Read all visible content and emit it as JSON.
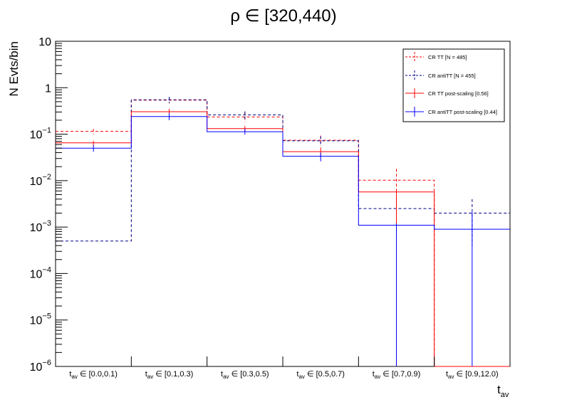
{
  "chart_data": {
    "type": "line",
    "title_symbol": "ρ ∈",
    "title_range": "[320,440)",
    "ylabel": "N Evts/bin",
    "xlabel_main": "t",
    "xlabel_sub": "av",
    "yscale": "log",
    "ylim": [
      1e-06,
      10
    ],
    "y_ticks": [
      {
        "base": "10",
        "exp": "",
        "value": 10
      },
      {
        "base": "1",
        "exp": "",
        "value": 1
      },
      {
        "base": "10",
        "exp": "−1",
        "value": 0.1
      },
      {
        "base": "10",
        "exp": "−2",
        "value": 0.01
      },
      {
        "base": "10",
        "exp": "−3",
        "value": 0.001
      },
      {
        "base": "10",
        "exp": "−4",
        "value": 0.0001
      },
      {
        "base": "10",
        "exp": "−5",
        "value": 1e-05
      },
      {
        "base": "10",
        "exp": "−6",
        "value": 1e-06
      }
    ],
    "categories": [
      {
        "pre": "t",
        "sub": "av",
        "post": " ∈ [0.0,0.1)"
      },
      {
        "pre": "t",
        "sub": "av",
        "post": " ∈ [0.1,0.3)"
      },
      {
        "pre": "t",
        "sub": "av",
        "post": " ∈ [0.3,0.5)"
      },
      {
        "pre": "t",
        "sub": "av",
        "post": " ∈ [0.5,0.7)"
      },
      {
        "pre": "t",
        "sub": "av",
        "post": " ∈ [0.7,0.9)"
      },
      {
        "pre": "t",
        "sub": "av",
        "post": " ∈ [0.9,12.0)"
      }
    ],
    "series": [
      {
        "name": "CR TT [N = 485]",
        "color": "#ff0000",
        "style": "dashed",
        "values": [
          0.115,
          0.54,
          0.235,
          0.074,
          0.0102,
          1e-06
        ],
        "err_up": [
          0.13,
          0.62,
          0.3,
          0.093,
          0.018,
          1e-06
        ],
        "err_down": [
          0.098,
          0.46,
          0.18,
          0.056,
          1e-06,
          1e-06
        ]
      },
      {
        "name": "CR antiTT [N = 455]",
        "color": "#00008b",
        "style": "dashed",
        "values": [
          0.0005,
          0.55,
          0.26,
          0.072,
          0.0025,
          0.002
        ],
        "err_up": [
          0.0005,
          0.64,
          0.31,
          0.09,
          0.0045,
          0.004
        ],
        "err_down": [
          0.0005,
          0.47,
          0.21,
          0.055,
          0.0005,
          0.0004
        ]
      },
      {
        "name": "CR TT post-scaling [0.56]",
        "color": "#ff0000",
        "style": "solid",
        "values": [
          0.065,
          0.305,
          0.132,
          0.042,
          0.0057,
          1e-06
        ],
        "err_up": [
          0.072,
          0.35,
          0.15,
          0.052,
          0.0065,
          1e-06
        ],
        "err_down": [
          0.055,
          0.26,
          0.11,
          0.032,
          1e-06,
          1e-06
        ]
      },
      {
        "name": "CR antiTT post-scaling [0.44]",
        "color": "#0000ff",
        "style": "solid",
        "values": [
          0.05,
          0.24,
          0.113,
          0.0335,
          0.0011,
          0.0009
        ],
        "err_up": [
          0.058,
          0.28,
          0.13,
          0.04,
          0.0012,
          0.0021
        ],
        "err_down": [
          0.042,
          0.2,
          0.098,
          0.026,
          1e-06,
          1e-06
        ]
      }
    ],
    "legend_placement": "top-right"
  }
}
